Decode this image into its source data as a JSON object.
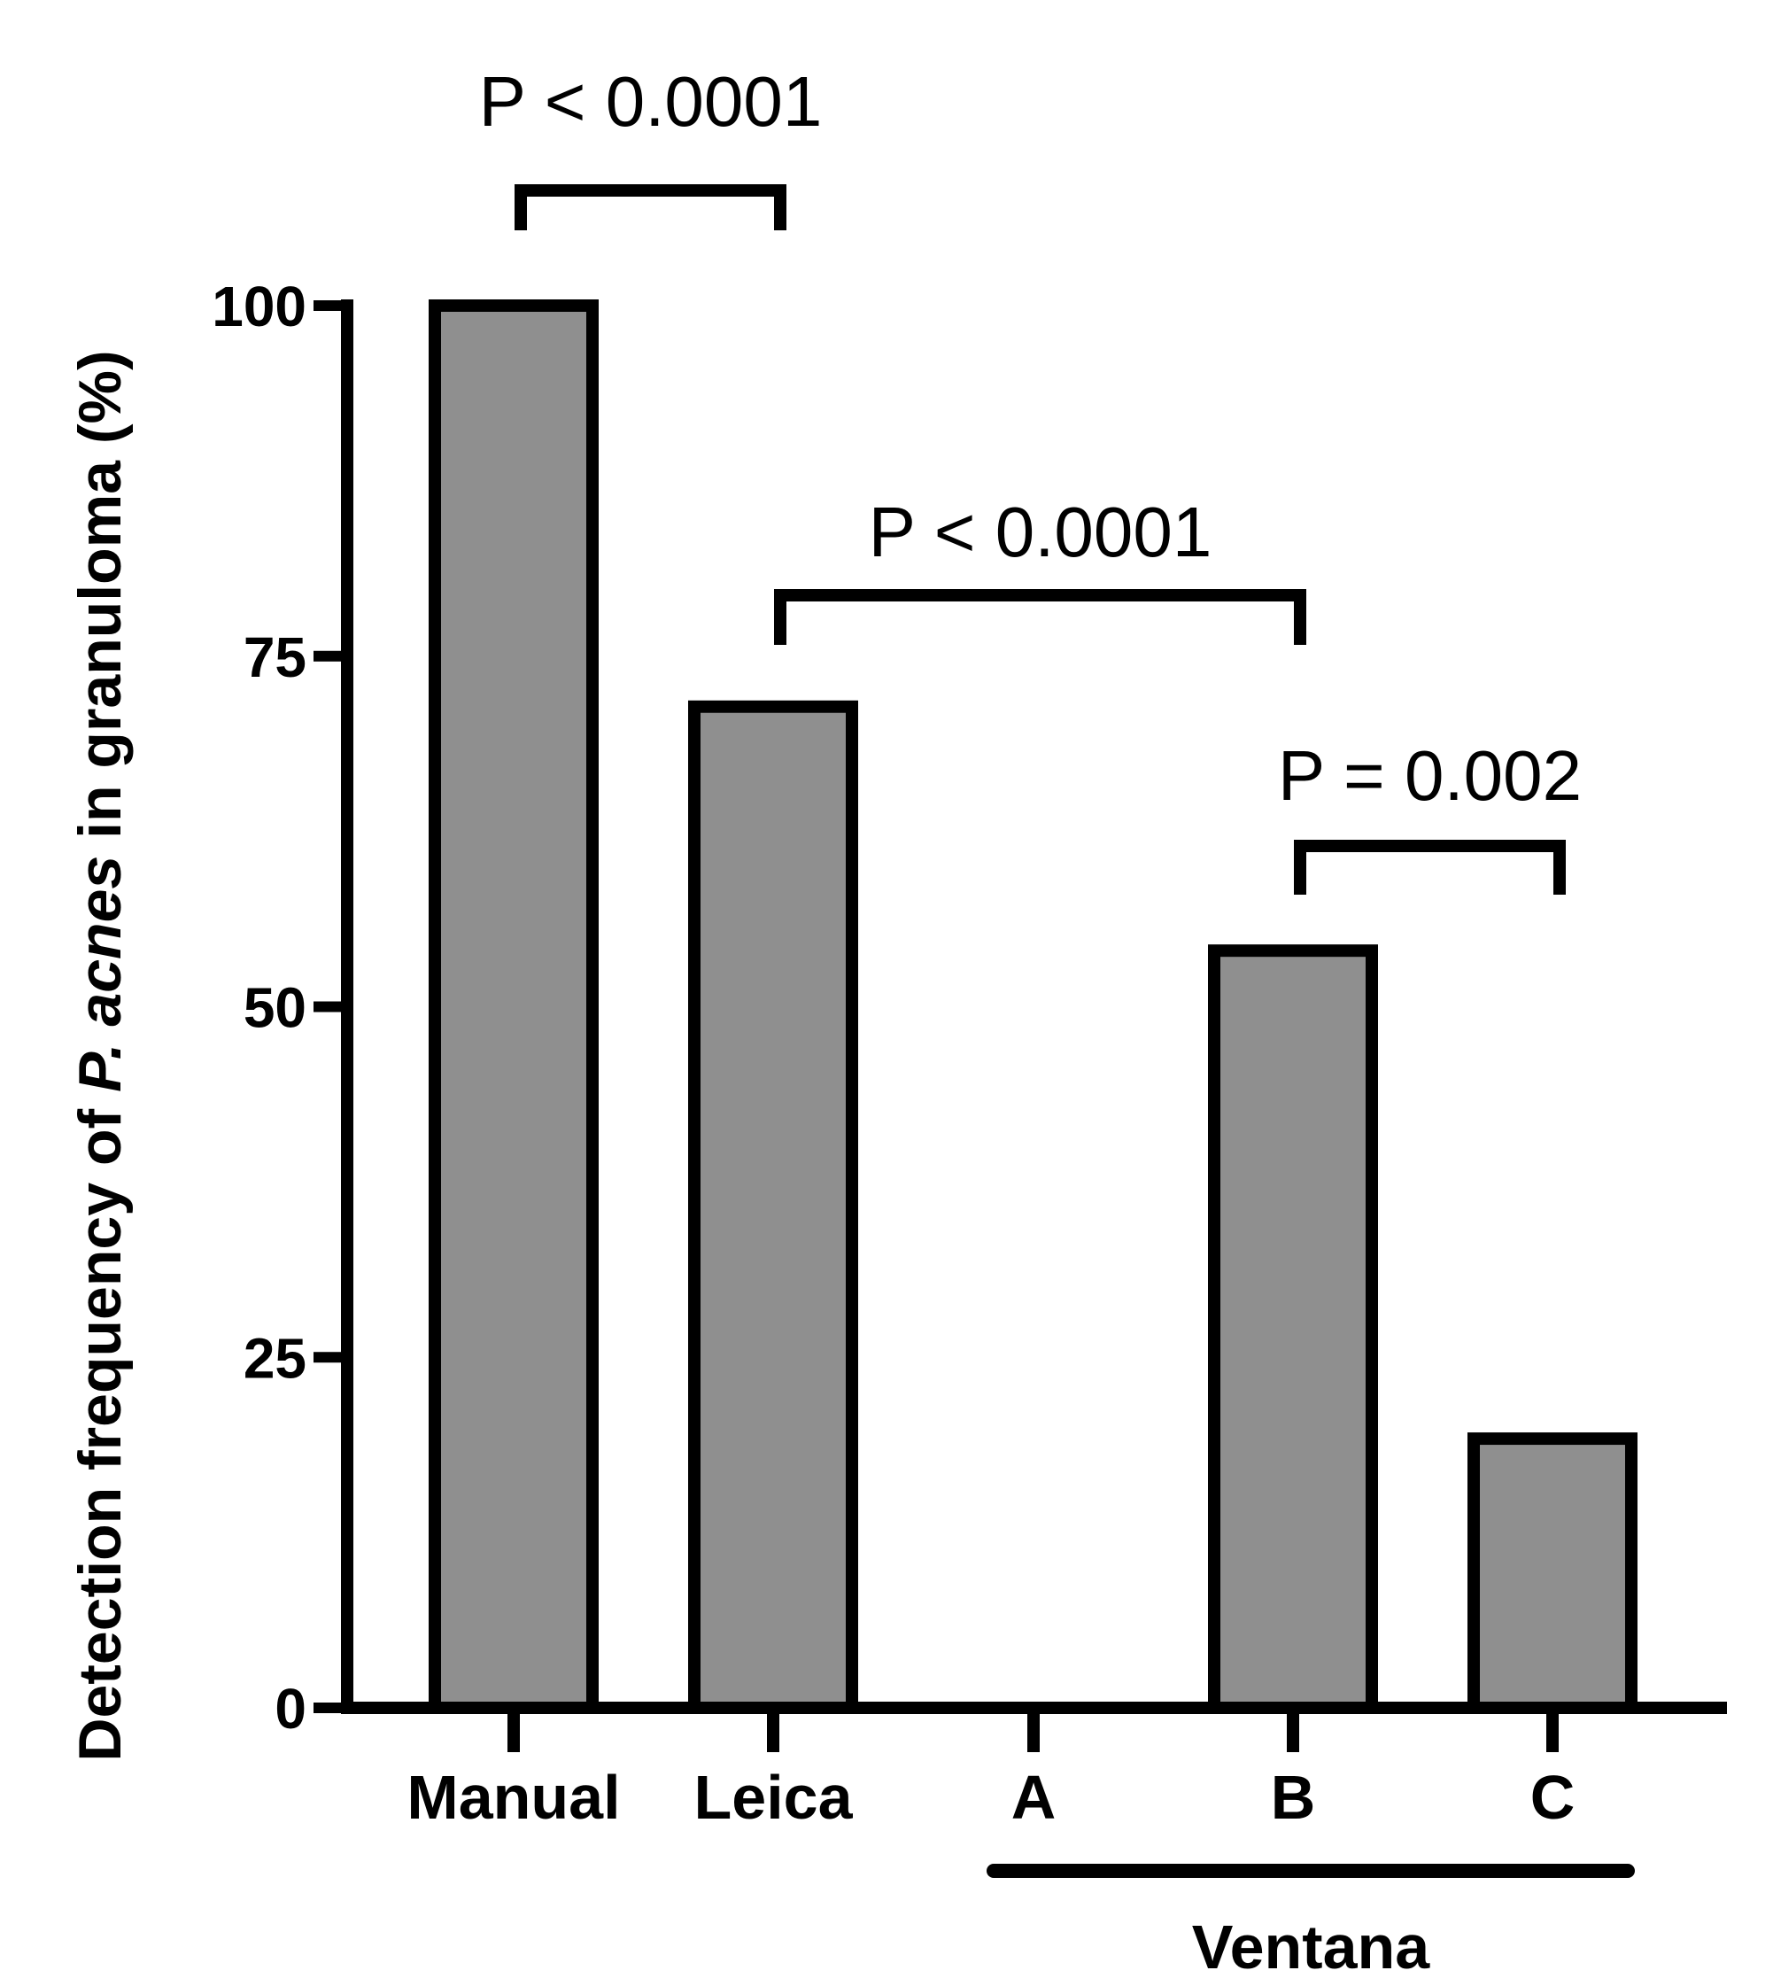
{
  "chart_data": {
    "type": "bar",
    "categories": [
      "Manual",
      "Leica",
      "A",
      "B",
      "C"
    ],
    "values": [
      100,
      71.4,
      0,
      54,
      19.2
    ],
    "ylabel_prefix": "Detection frequency of ",
    "ylabel_italic": "P. acnes",
    "ylabel_suffix": " in granuloma (%)",
    "xlabel": "",
    "ylim": [
      0,
      100
    ],
    "yticks": [
      0,
      25,
      50,
      75,
      100
    ],
    "grid": false,
    "bar_color": "#8f8f8f",
    "edge_color": "#000000",
    "group": {
      "label": "Ventana",
      "from": "A",
      "to": "C"
    },
    "annotations": [
      {
        "from": "Manual",
        "to": "Leica",
        "text": "P < 0.0001"
      },
      {
        "from": "Leica",
        "to": "B",
        "text": "P < 0.0001"
      },
      {
        "from": "B",
        "to": "C",
        "text": "P = 0.002"
      }
    ]
  }
}
